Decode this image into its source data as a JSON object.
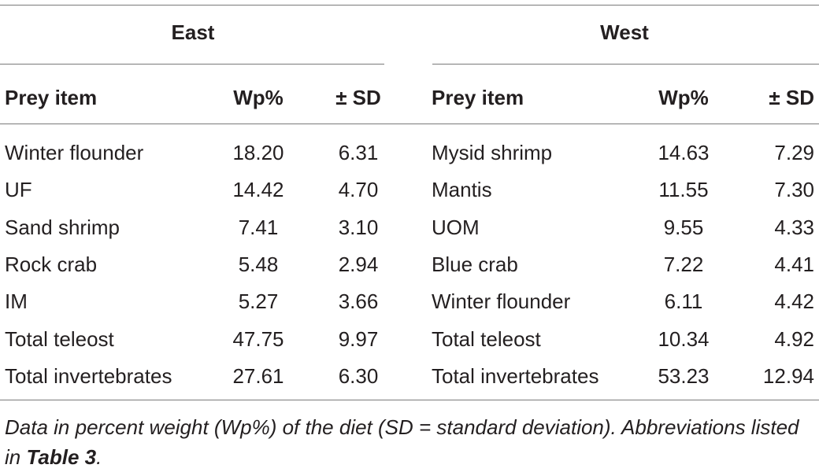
{
  "table": {
    "groups": {
      "east": "East",
      "west": "West"
    },
    "columns": {
      "east_prey": "Prey item",
      "east_wp": "Wp%",
      "east_sd": "± SD",
      "west_prey": "Prey item",
      "west_wp": "Wp%",
      "west_sd": "± SD"
    },
    "rows": [
      {
        "east_prey": "Winter flounder",
        "east_wp": "18.20",
        "east_sd": "6.31",
        "west_prey": "Mysid shrimp",
        "west_wp": "14.63",
        "west_sd": "7.29"
      },
      {
        "east_prey": "UF",
        "east_wp": "14.42",
        "east_sd": "4.70",
        "west_prey": "Mantis",
        "west_wp": "11.55",
        "west_sd": "7.30"
      },
      {
        "east_prey": "Sand shrimp",
        "east_wp": "7.41",
        "east_sd": "3.10",
        "west_prey": "UOM",
        "west_wp": "9.55",
        "west_sd": "4.33"
      },
      {
        "east_prey": "Rock crab",
        "east_wp": "5.48",
        "east_sd": "2.94",
        "west_prey": "Blue crab",
        "west_wp": "7.22",
        "west_sd": "4.41"
      },
      {
        "east_prey": "IM",
        "east_wp": "5.27",
        "east_sd": "3.66",
        "west_prey": "Winter flounder",
        "west_wp": "6.11",
        "west_sd": "4.42"
      },
      {
        "east_prey": "Total teleost",
        "east_wp": "47.75",
        "east_sd": "9.97",
        "west_prey": "Total teleost",
        "west_wp": "10.34",
        "west_sd": "4.92"
      },
      {
        "east_prey": "Total invertebrates",
        "east_wp": "27.61",
        "east_sd": "6.30",
        "west_prey": "Total invertebrates",
        "west_wp": "53.23",
        "west_sd": "12.94"
      }
    ]
  },
  "footnote": {
    "text_before": "Data in percent weight (Wp%) of the diet (SD = standard deviation). Abbreviations listed in ",
    "reference": "Table 3",
    "text_after": "."
  }
}
